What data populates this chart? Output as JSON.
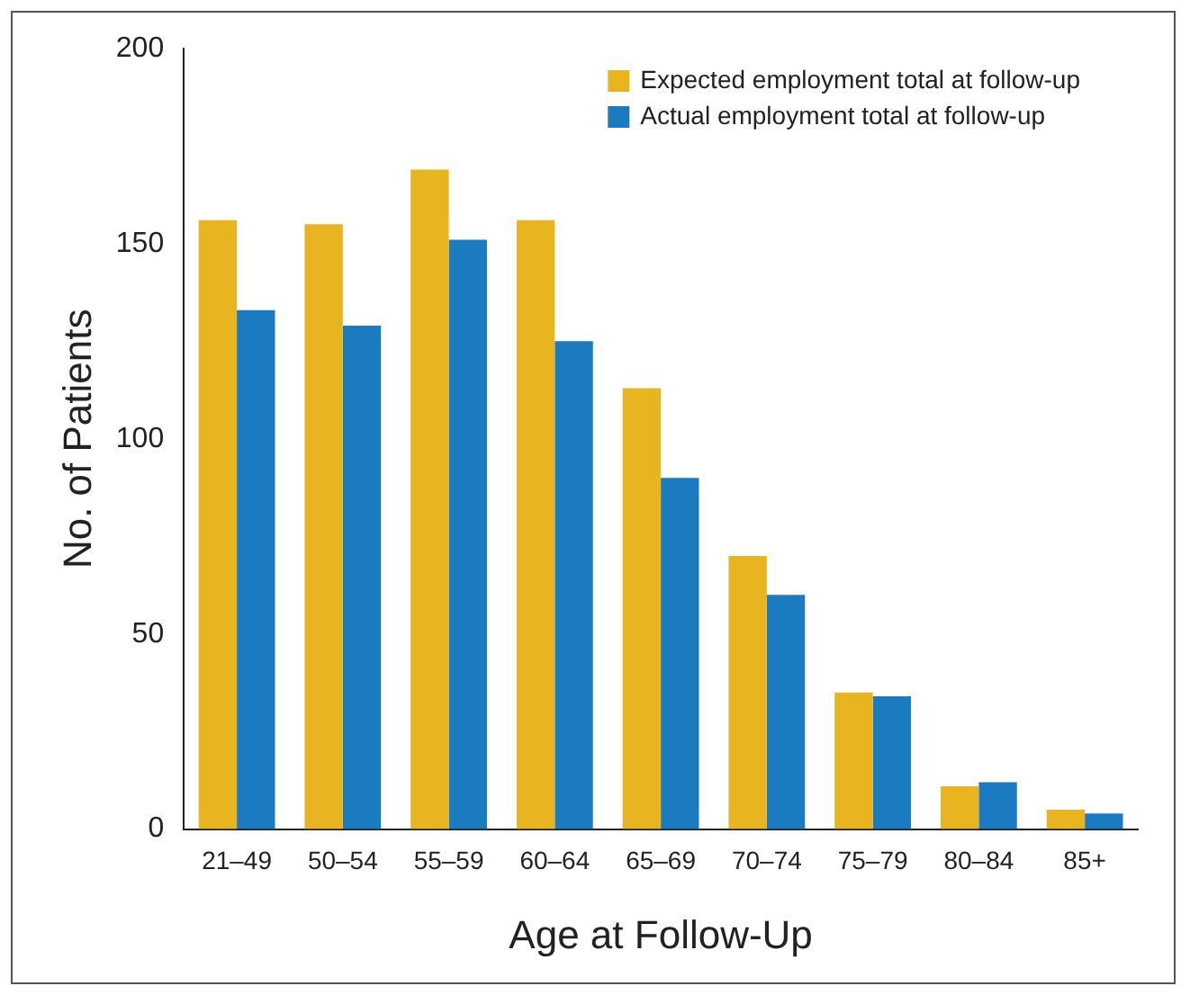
{
  "chart_data": {
    "type": "bar",
    "xlabel": "Age at Follow-Up",
    "ylabel": "No. of Patients",
    "categories": [
      "21–49",
      "50–54",
      "55–59",
      "60–64",
      "65–69",
      "70–74",
      "75–79",
      "80–84",
      "85+"
    ],
    "series": [
      {
        "name": "Expected employment total at follow-up",
        "color": "#e8b521",
        "values": [
          156,
          155,
          169,
          156,
          113,
          70,
          35,
          11,
          5
        ]
      },
      {
        "name": "Actual employment total at follow-up",
        "color": "#1b7bc1",
        "values": [
          133,
          129,
          151,
          125,
          90,
          60,
          34,
          12,
          4
        ]
      }
    ],
    "ylim": [
      0,
      200
    ],
    "yticks": [
      0,
      50,
      100,
      150,
      200
    ],
    "grid": false,
    "legend": "top right"
  }
}
